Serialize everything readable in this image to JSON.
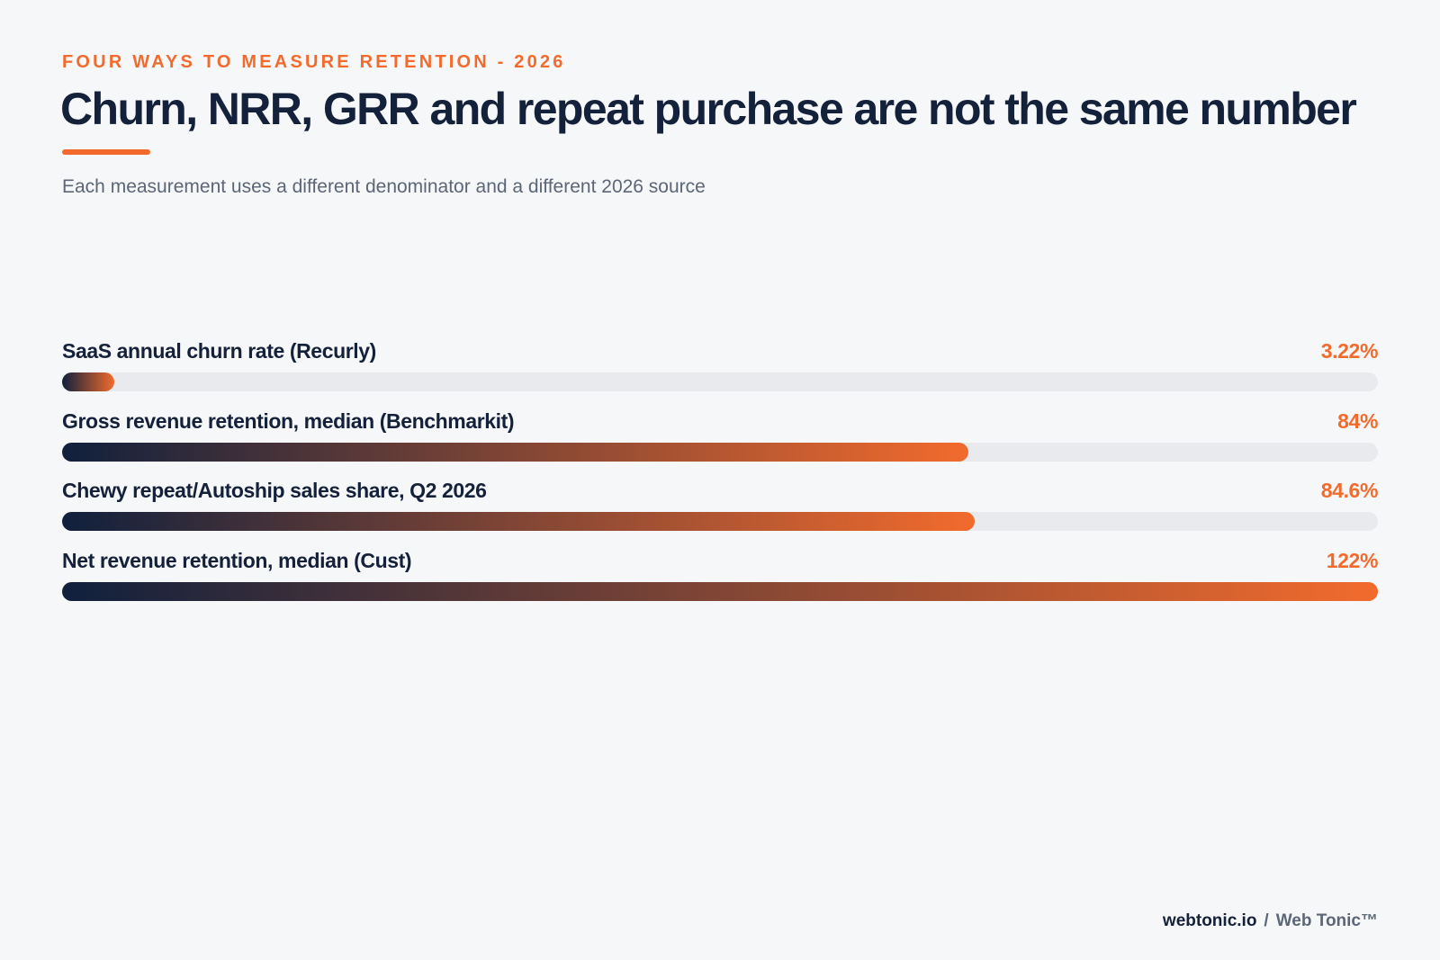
{
  "header": {
    "eyebrow": "FOUR WAYS TO MEASURE RETENTION - 2026",
    "title": "Churn, NRR, GRR and repeat purchase are not the same number",
    "subtitle": "Each measurement uses a different denominator and a different 2026 source"
  },
  "chart_data": {
    "type": "bar",
    "orientation": "horizontal",
    "title": "Churn, NRR, GRR and repeat purchase are not the same number",
    "subtitle": "Each measurement uses a different denominator and a different 2026 source",
    "categories": [
      "SaaS annual churn rate (Recurly)",
      "Gross revenue retention, median (Benchmarkit)",
      "Chewy repeat/Autoship sales share, Q2 2026",
      "Net revenue retention, median (Cust)"
    ],
    "values": [
      3.22,
      84,
      84.6,
      122
    ],
    "value_labels": [
      "3.22%",
      "84%",
      "84.6%",
      "122%"
    ],
    "unit": "%",
    "xlim": [
      0,
      122
    ],
    "grid": false,
    "legend": "none",
    "colors": {
      "gradient_start": "#10203d",
      "gradient_end": "#f26b2d",
      "track": "#e8eaee",
      "value_text": "#f26b2d"
    }
  },
  "footer": {
    "site": "webtonic.io",
    "separator": "/",
    "brand": "Web Tonic™"
  }
}
